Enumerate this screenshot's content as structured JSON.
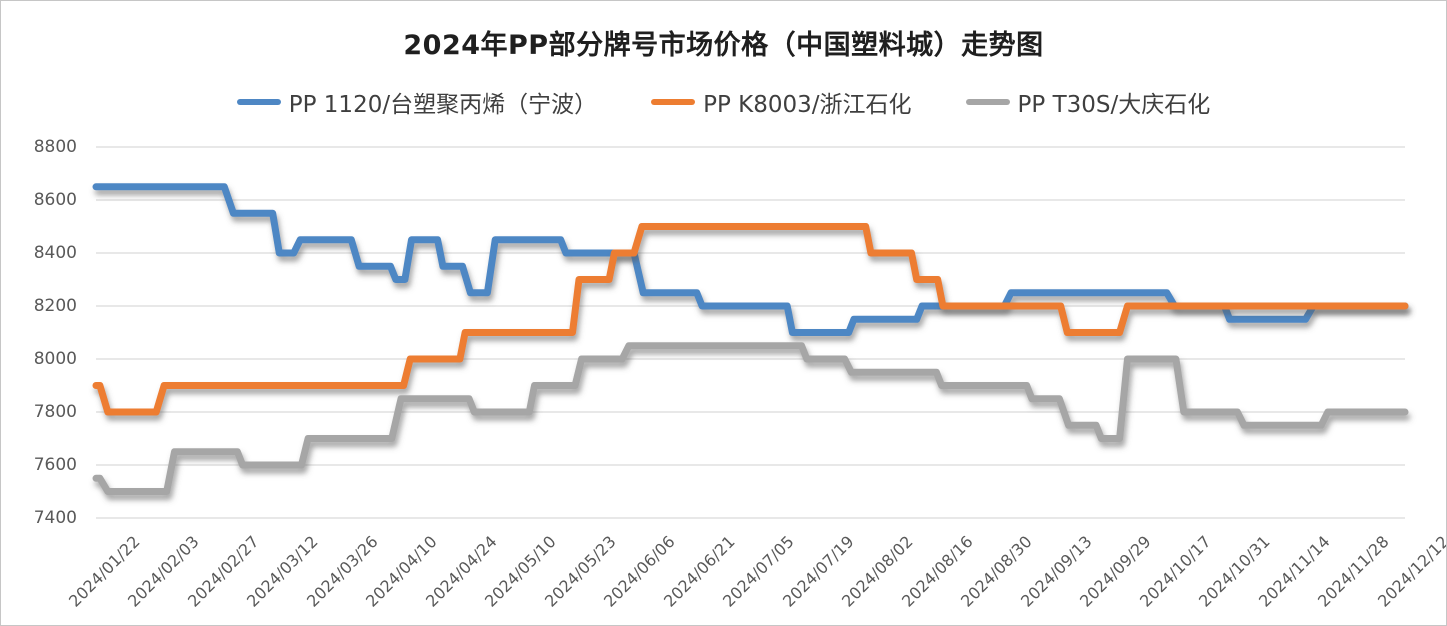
{
  "title": "2024年PP部分牌号市场价格（中国塑料城）走势图",
  "legend": {
    "items": [
      {
        "label": "PP 1120/台塑聚丙烯（宁波）",
        "color": "#4e87c4"
      },
      {
        "label": "PP K8003/浙江石化",
        "color": "#ed7d31"
      },
      {
        "label": "PP T30S/大庆石化",
        "color": "#a6a6a6"
      }
    ]
  },
  "chart_data": {
    "type": "line",
    "title": "2024年PP部分牌号市场价格（中国塑料城）走势图",
    "xlabel": "",
    "ylabel": "",
    "grid": true,
    "legend_position": "top",
    "x_axis": {
      "type": "category",
      "note": "point x-values are percent (0-100) across the plot, 0 = 2024/01/22 tick, 100 = 2024/12/12 tick",
      "labels": [
        "2024/01/22",
        "2024/02/03",
        "2024/02/27",
        "2024/03/12",
        "2024/03/26",
        "2024/04/10",
        "2024/04/24",
        "2024/05/10",
        "2024/05/23",
        "2024/06/06",
        "2024/06/21",
        "2024/07/05",
        "2024/07/19",
        "2024/08/02",
        "2024/08/16",
        "2024/08/30",
        "2024/09/13",
        "2024/09/29",
        "2024/10/17",
        "2024/10/31",
        "2024/11/14",
        "2024/11/28",
        "2024/12/12"
      ]
    },
    "y_axis": {
      "min": 7400,
      "max": 8800,
      "step": 200,
      "ticks": [
        8800,
        8600,
        8400,
        8200,
        8000,
        7800,
        7600,
        7400
      ]
    },
    "series": [
      {
        "name": "PP 1120/台塑聚丙烯（宁波）",
        "color": "#4e87c4",
        "points": [
          [
            0,
            8650
          ],
          [
            9.8,
            8650
          ],
          [
            10.5,
            8550
          ],
          [
            13.5,
            8550
          ],
          [
            14.0,
            8400
          ],
          [
            15.1,
            8400
          ],
          [
            15.6,
            8450
          ],
          [
            19.5,
            8450
          ],
          [
            20.1,
            8350
          ],
          [
            22.5,
            8350
          ],
          [
            22.9,
            8300
          ],
          [
            23.6,
            8300
          ],
          [
            24.1,
            8450
          ],
          [
            26.1,
            8450
          ],
          [
            26.5,
            8350
          ],
          [
            28.0,
            8350
          ],
          [
            28.6,
            8250
          ],
          [
            29.9,
            8250
          ],
          [
            30.5,
            8450
          ],
          [
            35.5,
            8450
          ],
          [
            35.9,
            8400
          ],
          [
            41.1,
            8400
          ],
          [
            41.8,
            8250
          ],
          [
            45.9,
            8250
          ],
          [
            46.3,
            8200
          ],
          [
            52.8,
            8200
          ],
          [
            53.2,
            8100
          ],
          [
            57.5,
            8100
          ],
          [
            57.9,
            8150
          ],
          [
            62.7,
            8150
          ],
          [
            63.1,
            8200
          ],
          [
            69.4,
            8200
          ],
          [
            69.9,
            8250
          ],
          [
            81.8,
            8250
          ],
          [
            82.4,
            8200
          ],
          [
            86.2,
            8200
          ],
          [
            86.6,
            8150
          ],
          [
            92.4,
            8150
          ],
          [
            93.0,
            8200
          ],
          [
            100,
            8200
          ]
        ]
      },
      {
        "name": "PP K8003/浙江石化",
        "color": "#ed7d31",
        "points": [
          [
            0,
            7900
          ],
          [
            0.3,
            7900
          ],
          [
            0.9,
            7800
          ],
          [
            4.6,
            7800
          ],
          [
            5.2,
            7900
          ],
          [
            23.5,
            7900
          ],
          [
            24.0,
            8000
          ],
          [
            27.8,
            8000
          ],
          [
            28.2,
            8100
          ],
          [
            36.4,
            8100
          ],
          [
            36.9,
            8300
          ],
          [
            39.2,
            8300
          ],
          [
            39.6,
            8400
          ],
          [
            41.1,
            8400
          ],
          [
            41.7,
            8500
          ],
          [
            58.8,
            8500
          ],
          [
            59.2,
            8400
          ],
          [
            62.3,
            8400
          ],
          [
            62.7,
            8300
          ],
          [
            64.3,
            8300
          ],
          [
            64.7,
            8200
          ],
          [
            73.7,
            8200
          ],
          [
            74.2,
            8100
          ],
          [
            78.2,
            8100
          ],
          [
            78.8,
            8200
          ],
          [
            100,
            8200
          ]
        ]
      },
      {
        "name": "PP T30S/大庆石化",
        "color": "#a6a6a6",
        "points": [
          [
            0,
            7550
          ],
          [
            0.3,
            7550
          ],
          [
            0.9,
            7500
          ],
          [
            5.4,
            7500
          ],
          [
            6.0,
            7650
          ],
          [
            10.8,
            7650
          ],
          [
            11.2,
            7600
          ],
          [
            15.7,
            7600
          ],
          [
            16.2,
            7700
          ],
          [
            22.6,
            7700
          ],
          [
            23.3,
            7850
          ],
          [
            28.5,
            7850
          ],
          [
            28.9,
            7800
          ],
          [
            33.1,
            7800
          ],
          [
            33.5,
            7900
          ],
          [
            36.6,
            7900
          ],
          [
            37.1,
            8000
          ],
          [
            40.2,
            8000
          ],
          [
            40.7,
            8050
          ],
          [
            53.9,
            8050
          ],
          [
            54.3,
            8000
          ],
          [
            57.2,
            8000
          ],
          [
            57.7,
            7950
          ],
          [
            64.2,
            7950
          ],
          [
            64.6,
            7900
          ],
          [
            71.1,
            7900
          ],
          [
            71.5,
            7850
          ],
          [
            73.6,
            7850
          ],
          [
            74.3,
            7750
          ],
          [
            76.4,
            7750
          ],
          [
            76.8,
            7700
          ],
          [
            78.2,
            7700
          ],
          [
            78.8,
            8000
          ],
          [
            82.5,
            8000
          ],
          [
            83.1,
            7800
          ],
          [
            87.2,
            7800
          ],
          [
            87.7,
            7750
          ],
          [
            93.6,
            7750
          ],
          [
            94.1,
            7800
          ],
          [
            100,
            7800
          ]
        ]
      }
    ],
    "style": {
      "gridline_color": "#d9d9d9",
      "axis_label_color": "#595959",
      "title_color": "#1f1f1f",
      "line_width": 7
    }
  }
}
